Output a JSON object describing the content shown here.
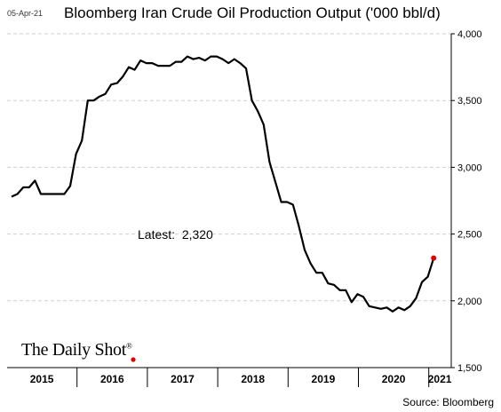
{
  "header": {
    "date": "05-Apr-21",
    "title": "Bloomberg Iran Crude Oil Production Output ('000 bbl/d)"
  },
  "annotation": {
    "latest_label": "Latest:",
    "latest_value": "2,320"
  },
  "brand": {
    "name": "The Daily Shot",
    "mark": "®"
  },
  "footer": {
    "source": "Source: Bloomberg"
  },
  "colors": {
    "line": "#000000",
    "marker": "#e00000",
    "grid": "#cfcfcf",
    "axis": "#000000"
  },
  "chart_data": {
    "type": "line",
    "title": "Bloomberg Iran Crude Oil Production Output ('000 bbl/d)",
    "xlabel": "",
    "ylabel": "",
    "ylim": [
      1500,
      4000
    ],
    "yticks": [
      1500,
      2000,
      2500,
      3000,
      3500,
      4000
    ],
    "ytick_labels": [
      "1,500",
      "2,000",
      "2,500",
      "3,000",
      "3,500",
      "4,000"
    ],
    "y_axis_side": "right",
    "grid": "horizontal dashed",
    "year_labels": [
      "2015",
      "2016",
      "2017",
      "2018",
      "2019",
      "2020",
      "2021"
    ],
    "x_start": "2015-01",
    "series": [
      {
        "values": [
          2780,
          2800,
          2850,
          2850,
          2900,
          2800,
          2800,
          2800,
          2800,
          2800,
          2860,
          3100,
          3200,
          3500,
          3500,
          3530,
          3550,
          3620,
          3630,
          3680,
          3750,
          3730,
          3800,
          3780,
          3780,
          3760,
          3760,
          3760,
          3790,
          3790,
          3830,
          3810,
          3820,
          3800,
          3830,
          3830,
          3810,
          3780,
          3810,
          3780,
          3740,
          3500,
          3420,
          3320,
          3040,
          2890,
          2740,
          2740,
          2720,
          2560,
          2380,
          2280,
          2210,
          2210,
          2130,
          2120,
          2080,
          2080,
          1990,
          2050,
          2030,
          1960,
          1950,
          1940,
          1950,
          1920,
          1950,
          1930,
          1960,
          2020,
          2140,
          2180,
          2320
        ]
      }
    ],
    "latest": {
      "date": "2021-01",
      "value": 2320
    }
  }
}
